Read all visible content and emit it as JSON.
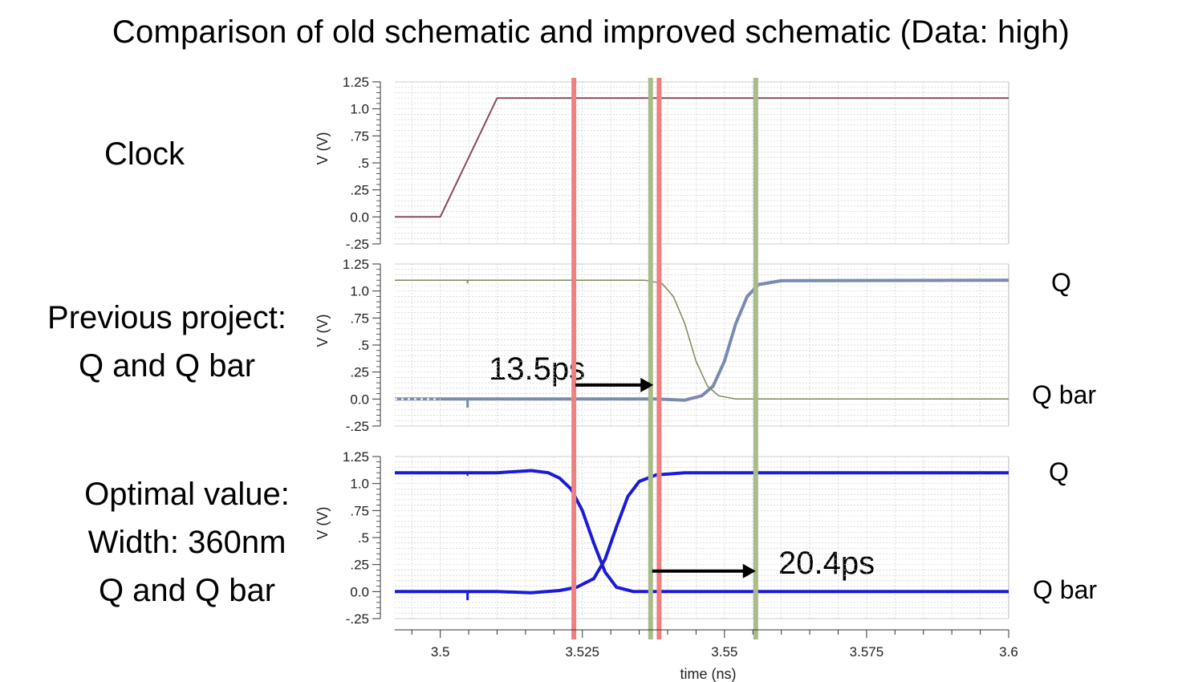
{
  "title": "Comparison of old schematic and improved schematic (Data: high)",
  "panels": {
    "clock": {
      "label": "Clock"
    },
    "previous": {
      "label_line1": "Previous project:",
      "label_line2": "Q and Q bar",
      "q": "Q",
      "qbar": "Q bar",
      "annotation": "13.5ps"
    },
    "optimal": {
      "label_line1": "Optimal value:",
      "label_line2": "Width: 360nm",
      "label_line3": "Q and Q bar",
      "q": "Q",
      "qbar": "Q bar",
      "annotation": "20.4ps"
    }
  },
  "colors": {
    "clock": "#8a4a5a",
    "prev_q": "#7a8ab0",
    "prev_qbar": "#7c8a5a",
    "opt": "#1a1ad8",
    "marker_red": "#f08080",
    "marker_green": "#a8bc8a",
    "grid": "#cfcfcf",
    "arrow": "#000000"
  },
  "chart_data": {
    "type": "line",
    "xlabel": "time (ns)",
    "x_ticks": [
      "3.5",
      "3.525",
      "3.55",
      "3.575",
      "3.6"
    ],
    "xlim": [
      3.492,
      3.6
    ],
    "markers": {
      "red": [
        3.5235,
        3.5385
      ],
      "green": [
        3.537,
        3.5555
      ]
    },
    "panels": [
      {
        "name": "Clock",
        "ylabel": "V (V)",
        "ylim": [
          -0.25,
          1.25
        ],
        "y_ticks": [
          "1.25",
          "1.0",
          ".75",
          ".5",
          ".25",
          "0.0",
          "-.25"
        ],
        "series": [
          {
            "name": "Clock",
            "color_key": "clock",
            "width": 2,
            "points": [
              [
                3.492,
                0
              ],
              [
                3.5,
                0
              ],
              [
                3.51,
                1.1
              ],
              [
                3.6,
                1.1
              ]
            ]
          }
        ]
      },
      {
        "name": "Previous project",
        "ylabel": "V (V)",
        "ylim": [
          -0.25,
          1.25
        ],
        "y_ticks": [
          "1.25",
          "1.0",
          ".75",
          ".5",
          ".25",
          "0.0",
          "-.25"
        ],
        "series": [
          {
            "name": "Q",
            "color_key": "prev_q",
            "width": 4,
            "points": [
              [
                3.492,
                0
              ],
              [
                3.538,
                0
              ],
              [
                3.543,
                -0.01
              ],
              [
                3.546,
                0.03
              ],
              [
                3.548,
                0.12
              ],
              [
                3.55,
                0.35
              ],
              [
                3.552,
                0.7
              ],
              [
                3.554,
                0.95
              ],
              [
                3.556,
                1.06
              ],
              [
                3.56,
                1.095
              ],
              [
                3.6,
                1.1
              ]
            ]
          },
          {
            "name": "Q bar",
            "color_key": "prev_qbar",
            "width": 1.5,
            "points": [
              [
                3.492,
                1.1
              ],
              [
                3.536,
                1.1
              ],
              [
                3.539,
                1.07
              ],
              [
                3.541,
                0.95
              ],
              [
                3.543,
                0.7
              ],
              [
                3.545,
                0.35
              ],
              [
                3.547,
                0.12
              ],
              [
                3.549,
                0.03
              ],
              [
                3.552,
                0.0
              ],
              [
                3.6,
                0.0
              ]
            ]
          }
        ]
      },
      {
        "name": "Optimal value",
        "ylabel": "V (V)",
        "ylim": [
          -0.25,
          1.25
        ],
        "y_ticks": [
          "1.25",
          "1.0",
          ".75",
          ".5",
          ".25",
          "0.0",
          "-.25"
        ],
        "series": [
          {
            "name": "Q",
            "color_key": "opt",
            "width": 4,
            "points": [
              [
                3.492,
                0
              ],
              [
                3.51,
                0
              ],
              [
                3.516,
                -0.01
              ],
              [
                3.521,
                0.01
              ],
              [
                3.524,
                0.04
              ],
              [
                3.527,
                0.12
              ],
              [
                3.529,
                0.3
              ],
              [
                3.531,
                0.6
              ],
              [
                3.533,
                0.88
              ],
              [
                3.535,
                1.02
              ],
              [
                3.538,
                1.08
              ],
              [
                3.543,
                1.1
              ],
              [
                3.6,
                1.1
              ]
            ]
          },
          {
            "name": "Q bar",
            "color_key": "opt",
            "width": 4,
            "points": [
              [
                3.492,
                1.1
              ],
              [
                3.51,
                1.1
              ],
              [
                3.516,
                1.12
              ],
              [
                3.519,
                1.1
              ],
              [
                3.521,
                1.05
              ],
              [
                3.523,
                0.95
              ],
              [
                3.525,
                0.75
              ],
              [
                3.527,
                0.45
              ],
              [
                3.529,
                0.18
              ],
              [
                3.531,
                0.04
              ],
              [
                3.534,
                0.0
              ],
              [
                3.6,
                0.0
              ]
            ]
          }
        ]
      }
    ],
    "annotations": [
      {
        "text": "13.5ps",
        "arrow_from_x": 3.5235,
        "arrow_to_x": 3.5375,
        "panel": 1,
        "arrow_y": 0.13
      },
      {
        "text": "20.4ps",
        "arrow_from_x": 3.537,
        "arrow_to_x": 3.5555,
        "panel": 2,
        "arrow_y": 0.19
      }
    ]
  }
}
